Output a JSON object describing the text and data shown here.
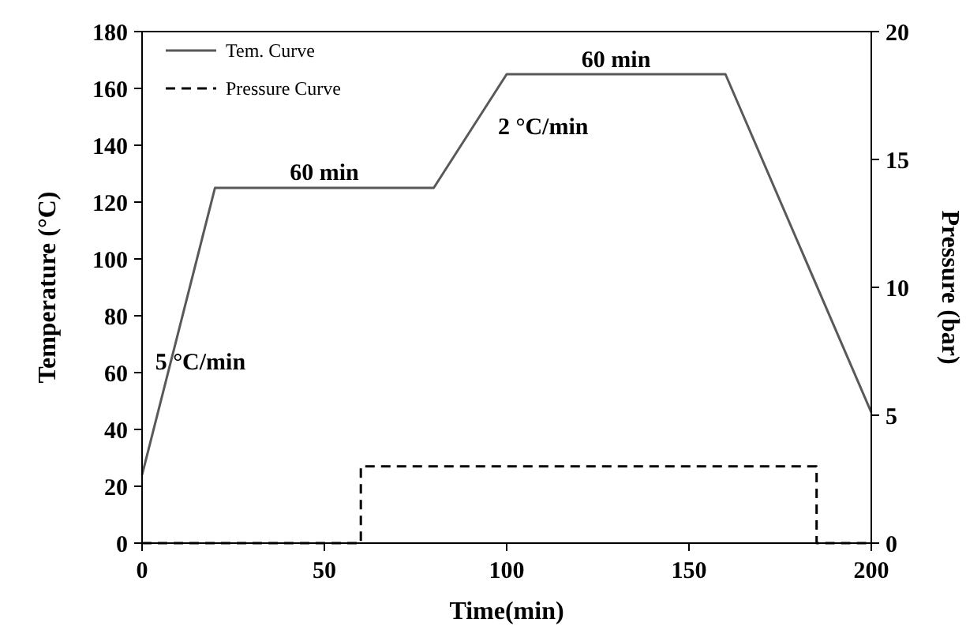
{
  "chart_data": {
    "type": "line",
    "xlabel": "Time(min)",
    "ylabel": "Temperature (°C)",
    "y2label": "Pressure (bar)",
    "xlim": [
      0,
      200
    ],
    "xticks": [
      0,
      50,
      100,
      150,
      200
    ],
    "ylim": [
      0,
      180
    ],
    "yticks": [
      0,
      20,
      40,
      60,
      80,
      100,
      120,
      140,
      160,
      180
    ],
    "y2lim": [
      0,
      20
    ],
    "y2ticks": [
      0,
      5,
      10,
      15,
      20
    ],
    "legend": "top left",
    "grid": false,
    "series": [
      {
        "name": "Tem. Curve",
        "color": "#595959",
        "line_style": "solid",
        "x": [
          0,
          20,
          80,
          100,
          160,
          200
        ],
        "values": [
          24,
          125,
          125,
          165,
          165,
          46
        ]
      },
      {
        "name": "Pressure Curve",
        "color": "#000000",
        "line_style": "dashed",
        "axis": "y2",
        "x": [
          0,
          60,
          60,
          185,
          185,
          200
        ],
        "values": [
          0,
          0,
          3,
          3,
          0,
          0
        ]
      }
    ],
    "annotations": [
      "5 °C/min",
      "60 min",
      "2 °C/min",
      "60 min"
    ]
  }
}
